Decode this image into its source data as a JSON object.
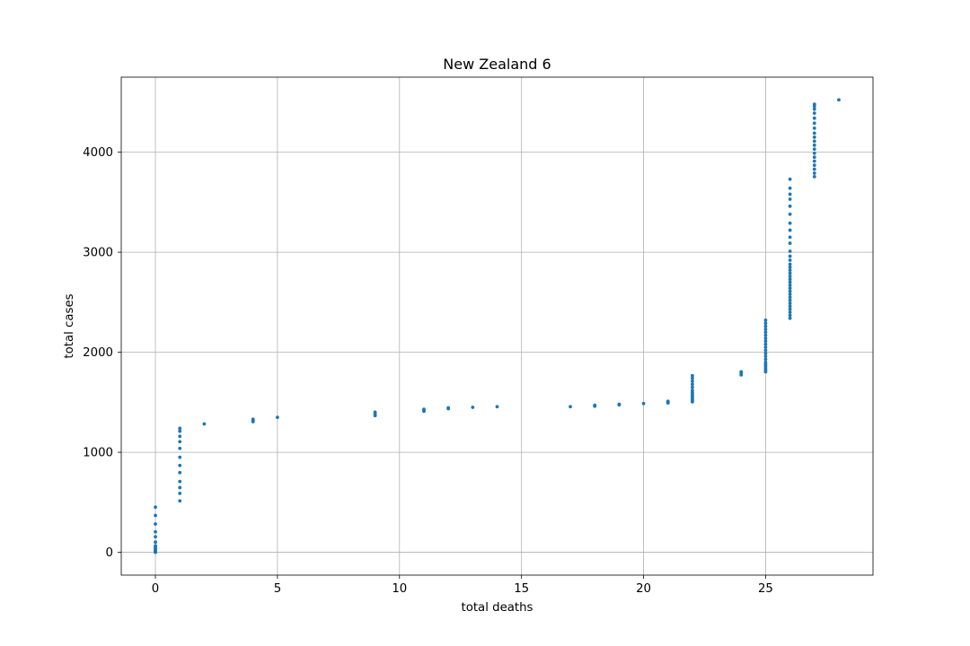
{
  "chart_data": {
    "type": "scatter",
    "title": "New Zealand 6",
    "xlabel": "total deaths",
    "ylabel": "total cases",
    "xlim": [
      -1.4,
      29.4
    ],
    "ylim": [
      -228,
      4750
    ],
    "xticks": [
      0,
      5,
      10,
      15,
      20,
      25
    ],
    "yticks": [
      0,
      1000,
      2000,
      3000,
      4000
    ],
    "grid": true,
    "marker_color": "#1f77b4",
    "series": [
      {
        "points": [
          [
            0,
            1
          ],
          [
            0,
            2
          ],
          [
            0,
            3
          ],
          [
            0,
            5
          ],
          [
            0,
            6
          ],
          [
            0,
            8
          ],
          [
            0,
            12
          ],
          [
            0,
            20
          ],
          [
            0,
            28
          ],
          [
            0,
            39
          ],
          [
            0,
            52
          ],
          [
            0,
            66
          ],
          [
            0,
            102
          ],
          [
            0,
            155
          ],
          [
            0,
            205
          ],
          [
            0,
            283
          ],
          [
            0,
            368
          ],
          [
            0,
            451
          ],
          [
            1,
            514
          ],
          [
            1,
            589
          ],
          [
            1,
            647
          ],
          [
            1,
            708
          ],
          [
            1,
            797
          ],
          [
            1,
            868
          ],
          [
            1,
            950
          ],
          [
            1,
            1039
          ],
          [
            1,
            1106
          ],
          [
            1,
            1160
          ],
          [
            1,
            1210
          ],
          [
            1,
            1239
          ],
          [
            2,
            1283
          ],
          [
            4,
            1306
          ],
          [
            4,
            1312
          ],
          [
            4,
            1321
          ],
          [
            4,
            1330
          ],
          [
            5,
            1349
          ],
          [
            9,
            1366
          ],
          [
            9,
            1384
          ],
          [
            9,
            1401
          ],
          [
            11,
            1410
          ],
          [
            11,
            1422
          ],
          [
            11,
            1430
          ],
          [
            12,
            1436
          ],
          [
            12,
            1445
          ],
          [
            13,
            1449
          ],
          [
            14,
            1456
          ],
          [
            17,
            1456
          ],
          [
            18,
            1461
          ],
          [
            18,
            1470
          ],
          [
            19,
            1474
          ],
          [
            19,
            1480
          ],
          [
            20,
            1487
          ],
          [
            21,
            1493
          ],
          [
            21,
            1499
          ],
          [
            21,
            1504
          ],
          [
            21,
            1510
          ],
          [
            22,
            1504
          ],
          [
            22,
            1520
          ],
          [
            22,
            1535
          ],
          [
            22,
            1550
          ],
          [
            22,
            1565
          ],
          [
            22,
            1580
          ],
          [
            22,
            1600
          ],
          [
            22,
            1620
          ],
          [
            22,
            1650
          ],
          [
            22,
            1680
          ],
          [
            22,
            1710
          ],
          [
            22,
            1740
          ],
          [
            22,
            1765
          ],
          [
            24,
            1773
          ],
          [
            24,
            1785
          ],
          [
            24,
            1795
          ],
          [
            24,
            1804
          ],
          [
            25,
            1805
          ],
          [
            25,
            1820
          ],
          [
            25,
            1840
          ],
          [
            25,
            1860
          ],
          [
            25,
            1880
          ],
          [
            25,
            1900
          ],
          [
            25,
            1930
          ],
          [
            25,
            1960
          ],
          [
            25,
            1990
          ],
          [
            25,
            2020
          ],
          [
            25,
            2050
          ],
          [
            25,
            2080
          ],
          [
            25,
            2110
          ],
          [
            25,
            2140
          ],
          [
            25,
            2170
          ],
          [
            25,
            2200
          ],
          [
            25,
            2230
          ],
          [
            25,
            2260
          ],
          [
            25,
            2290
          ],
          [
            25,
            2320
          ],
          [
            26,
            2340
          ],
          [
            26,
            2370
          ],
          [
            26,
            2400
          ],
          [
            26,
            2430
          ],
          [
            26,
            2460
          ],
          [
            26,
            2490
          ],
          [
            26,
            2520
          ],
          [
            26,
            2550
          ],
          [
            26,
            2580
          ],
          [
            26,
            2610
          ],
          [
            26,
            2640
          ],
          [
            26,
            2670
          ],
          [
            26,
            2700
          ],
          [
            26,
            2730
          ],
          [
            26,
            2760
          ],
          [
            26,
            2790
          ],
          [
            26,
            2820
          ],
          [
            26,
            2850
          ],
          [
            26,
            2880
          ],
          [
            26,
            2920
          ],
          [
            26,
            2960
          ],
          [
            26,
            3010
          ],
          [
            26,
            3090
          ],
          [
            26,
            3150
          ],
          [
            26,
            3220
          ],
          [
            26,
            3290
          ],
          [
            26,
            3380
          ],
          [
            26,
            3460
          ],
          [
            26,
            3530
          ],
          [
            26,
            3580
          ],
          [
            26,
            3640
          ],
          [
            26,
            3730
          ],
          [
            27,
            3755
          ],
          [
            27,
            3790
          ],
          [
            27,
            3830
          ],
          [
            27,
            3870
          ],
          [
            27,
            3910
          ],
          [
            27,
            3950
          ],
          [
            27,
            3990
          ],
          [
            27,
            4030
          ],
          [
            27,
            4070
          ],
          [
            27,
            4110
          ],
          [
            27,
            4150
          ],
          [
            27,
            4190
          ],
          [
            27,
            4240
          ],
          [
            27,
            4290
          ],
          [
            27,
            4340
          ],
          [
            27,
            4390
          ],
          [
            27,
            4430
          ],
          [
            27,
            4460
          ],
          [
            27,
            4480
          ],
          [
            28,
            4523
          ]
        ]
      }
    ]
  }
}
